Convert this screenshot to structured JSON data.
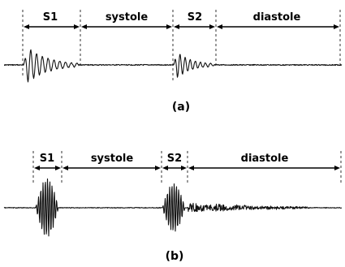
{
  "panels": [
    {
      "caption": "(a)",
      "segments": [
        {
          "label": "S1"
        },
        {
          "label": "systole"
        },
        {
          "label": "S2"
        },
        {
          "label": "diastole"
        }
      ]
    },
    {
      "caption": "(b)",
      "segments": [
        {
          "label": "S1"
        },
        {
          "label": "systole"
        },
        {
          "label": "S2"
        },
        {
          "label": "diastole"
        }
      ]
    }
  ]
}
